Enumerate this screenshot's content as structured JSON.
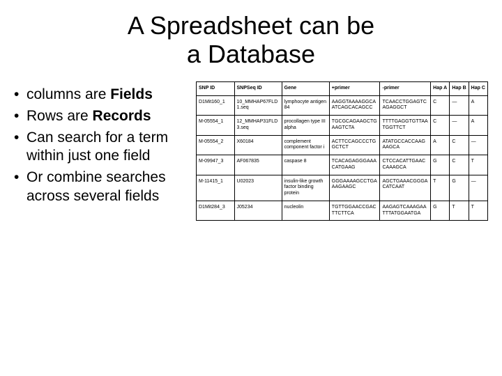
{
  "title_line1": "A Spreadsheet can be",
  "title_line2": "a Database",
  "bullets": {
    "b1a": "columns are ",
    "b1b": "Fields",
    "b2a": "Rows are ",
    "b2b": "Records",
    "b3": "Can search for a term within just one field",
    "b4": "Or combine searches across several fields"
  },
  "headers": {
    "snpid": "SNP ID",
    "seq": "SNPSeq ID",
    "gene": "Gene",
    "plus": "+primer",
    "minus": "-primer",
    "hapA": "Hap A",
    "hapB": "Hap B",
    "hapC": "Hap C"
  },
  "rows": [
    {
      "snpid": "D1Mit160_1",
      "seq": "10_MMHAP67FLD1.seq",
      "gene": "lymphocyte antigen 84",
      "plus": "AAGGTAAAAGGCAATCAGCACAGCC",
      "minus": "TCAACCTGGAGTCAGAGGCT",
      "a": "C",
      "b": "—",
      "c": "A"
    },
    {
      "snpid": "M-05554_1",
      "seq": "12_MMHAP31FLD3.seq",
      "gene": "procollagen type III alpha",
      "plus": "TGCGCAGAAGCTGAAGTCTA",
      "minus": "TTTTGAGGTGTTAATGGTTCT",
      "a": "C",
      "b": "—",
      "c": "A"
    },
    {
      "snpid": "M-05554_2",
      "seq": "X60184",
      "gene": "complement component factor i",
      "plus": "ACTTCCAGCCCTGGCTCT",
      "minus": "ATATGCCACCAAGAAGCA",
      "a": "A",
      "b": "C",
      "c": "—"
    },
    {
      "snpid": "M-09947_3",
      "seq": "AF067835",
      "gene": "caspase 8",
      "plus": "TCACAGAGGGAAACATGAAG",
      "minus": "CTCCACATTGAACCAAAGCA",
      "a": "G",
      "b": "C",
      "c": "T"
    },
    {
      "snpid": "M-11415_1",
      "seq": "U02023",
      "gene": "insulin-like growth factor binding protein",
      "plus": "GGGAAAAGCCTGAAAGAAGC",
      "minus": "AGCTGAAACGGGACATCAAT",
      "a": "T",
      "b": "G",
      "c": "—"
    },
    {
      "snpid": "D1Mit284_3",
      "seq": "J05234",
      "gene": "nucleolin",
      "plus": "TGTTGGAACCGACTTCTTCA",
      "minus": "AAGAGTCAAAGAATTTATGGAATGA",
      "a": "G",
      "b": "T",
      "c": "T"
    }
  ]
}
